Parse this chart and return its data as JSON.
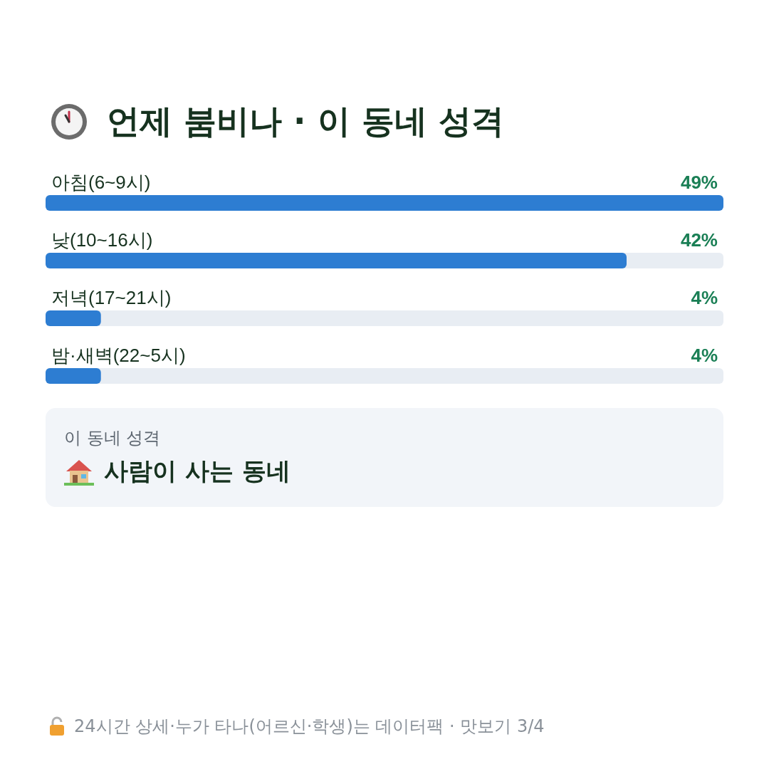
{
  "chart_data": {
    "type": "bar",
    "orientation": "horizontal",
    "title": "언제 붐비나 · 이 동네 성격",
    "categories": [
      "아침(6~9시)",
      "낮(10~16시)",
      "저녁(17~21시)",
      "밤·새벽(22~5시)"
    ],
    "values": [
      49,
      42,
      4,
      4
    ],
    "color": "#2d7dd2",
    "value_labels": [
      "49%",
      "42%",
      "4%",
      "4%"
    ],
    "xlim": [
      0,
      49
    ],
    "tick_labels": "y",
    "annotations": [
      "이 동네 성격",
      "사람이 사는 동네",
      "24시간 상세·누가 타나(어르신·학생)는 데이터팩 · 맛보기 3/4"
    ]
  }
}
